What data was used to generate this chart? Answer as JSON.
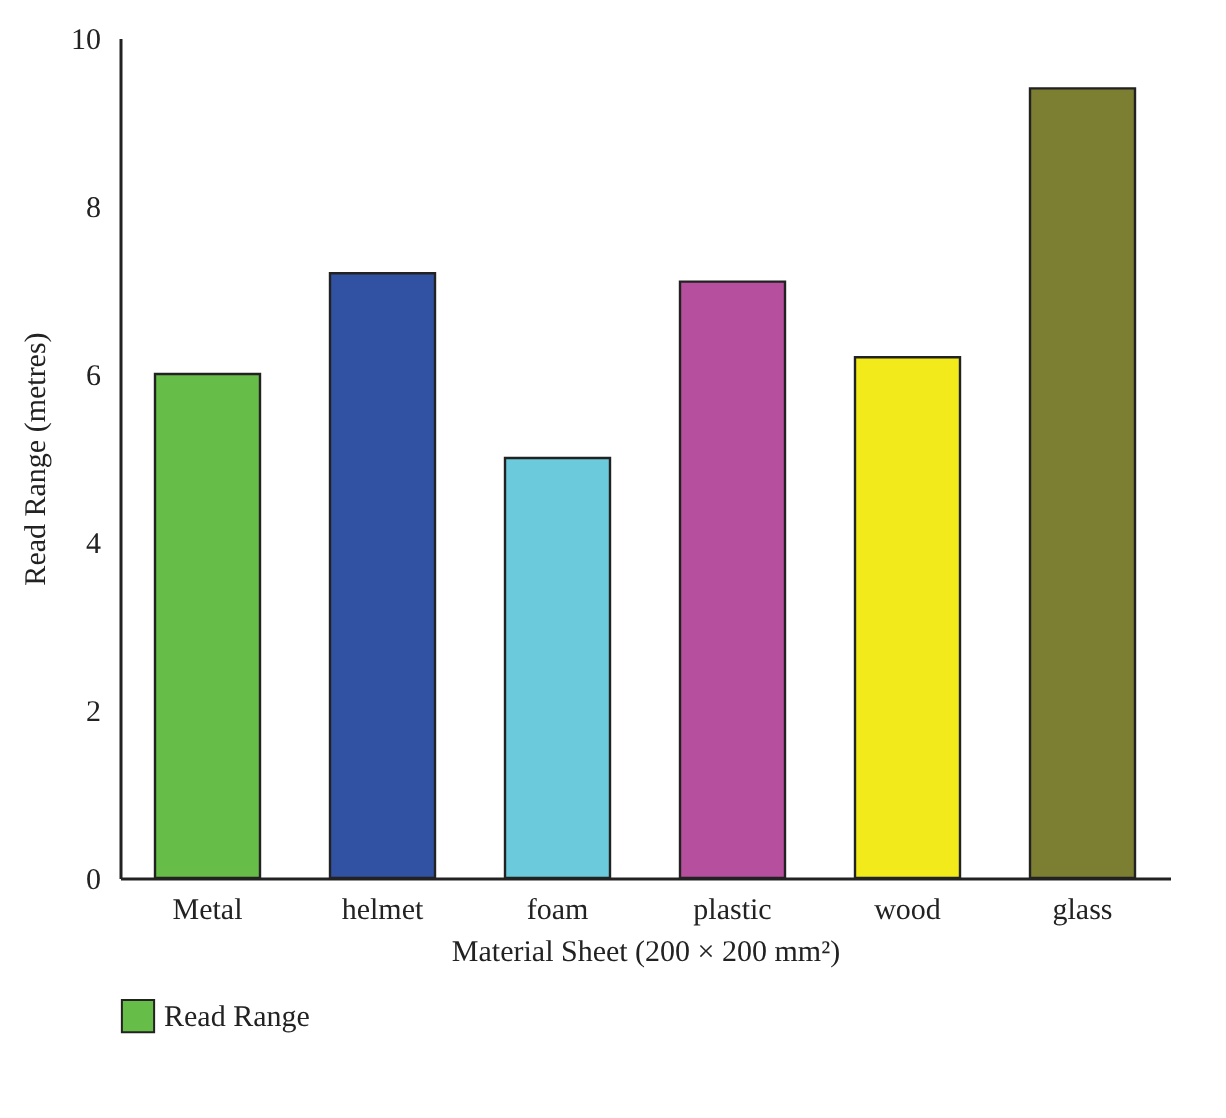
{
  "chart_data": {
    "type": "bar",
    "xlabel": "Material Sheet (200 × 200 mm²)",
    "ylabel": "Read Range (metres)",
    "categories": [
      "Metal",
      "helmet",
      "foam",
      "plastic",
      "wood",
      "glass"
    ],
    "series": [
      {
        "name": "Read Range",
        "colors": [
          "#66bd47",
          "#3152a3",
          "#6bcadc",
          "#b64f9d",
          "#f2ea1a",
          "#7c7e32"
        ],
        "values": [
          6.0,
          7.2,
          5.0,
          7.1,
          6.2,
          9.4
        ]
      }
    ],
    "ylim": [
      0,
      10
    ],
    "yticks": [
      0,
      2,
      4,
      6,
      8,
      10
    ],
    "grid": false,
    "legend": "bottom left"
  }
}
